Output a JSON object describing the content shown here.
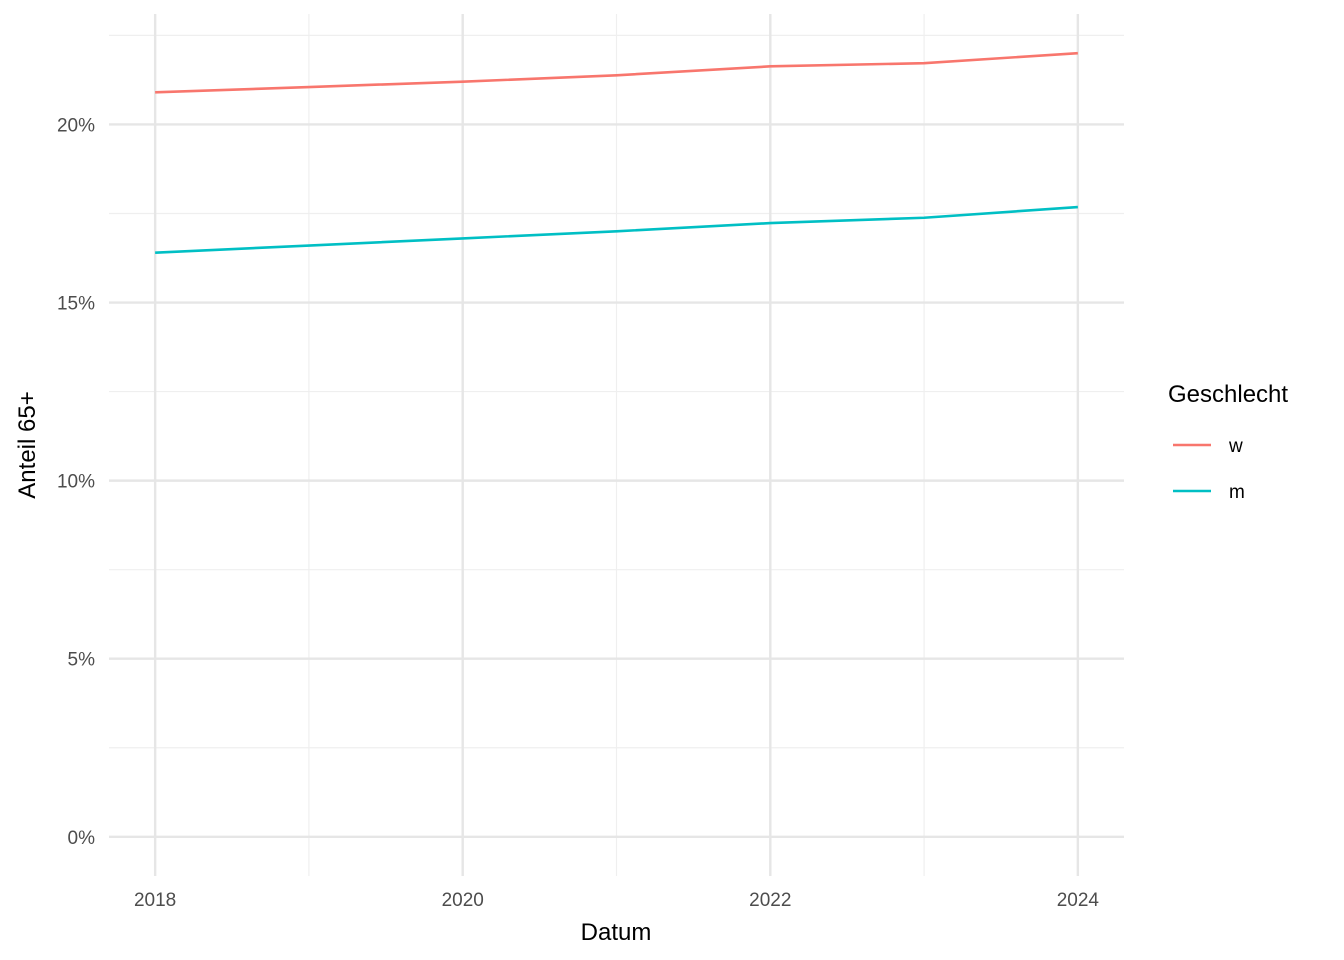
{
  "chart_data": {
    "type": "line",
    "title": "",
    "xlabel": "Datum",
    "ylabel": "Anteil 65+",
    "x": [
      2018,
      2019,
      2020,
      2021,
      2022,
      2023,
      2024
    ],
    "x_ticks": [
      2018,
      2020,
      2022,
      2024
    ],
    "x_tick_labels": [
      "2018",
      "2020",
      "2022",
      "2024"
    ],
    "xlim": [
      2017.7,
      2024.3
    ],
    "y_ticks": [
      0,
      0.05,
      0.1,
      0.15,
      0.2
    ],
    "y_tick_labels": [
      "0%",
      "5%",
      "10%",
      "15%",
      "20%"
    ],
    "ylim": [
      -0.011,
      0.231
    ],
    "grid": true,
    "legend": {
      "title": "Geschlecht",
      "placement": "right"
    },
    "series": [
      {
        "name": "w",
        "color": "#F8766D",
        "values": [
          0.209,
          0.2105,
          0.212,
          0.2138,
          0.2163,
          0.2172,
          0.22
        ]
      },
      {
        "name": "m",
        "color": "#00BFC4",
        "values": [
          0.164,
          0.166,
          0.168,
          0.17,
          0.1723,
          0.1738,
          0.1768
        ]
      }
    ]
  }
}
